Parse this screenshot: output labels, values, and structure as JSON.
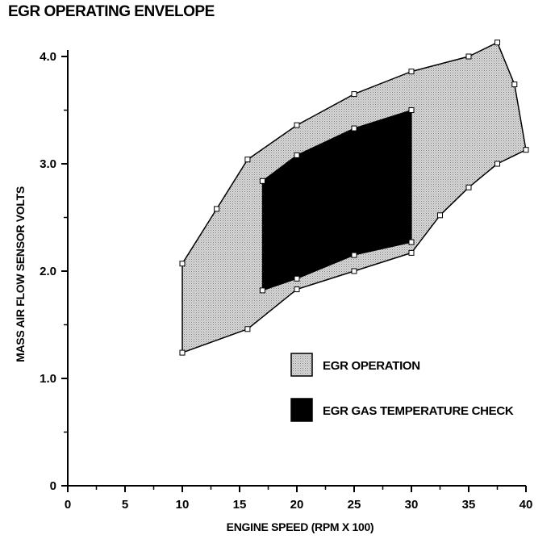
{
  "chart_data": {
    "type": "area",
    "title": "EGR OPERATING ENVELOPE",
    "xlabel": "ENGINE SPEED (RPM X 100)",
    "ylabel": "MASS AIR FLOW SENSOR VOLTS",
    "xlim": [
      0,
      40
    ],
    "ylim": [
      0,
      4.0
    ],
    "x_ticks": [
      "0",
      "5",
      "10",
      "15",
      "20",
      "25",
      "30",
      "35",
      "40"
    ],
    "y_ticks": [
      "0",
      "1.0",
      "2.0",
      "3.0",
      "4.0"
    ],
    "grid": false,
    "legend_position": "bottom-right",
    "series": [
      {
        "name": "EGR OPERATION",
        "fill": "dotted-gray",
        "points": [
          [
            10,
            2.07
          ],
          [
            13,
            2.58
          ],
          [
            15.7,
            3.04
          ],
          [
            20,
            3.36
          ],
          [
            25,
            3.65
          ],
          [
            30,
            3.86
          ],
          [
            35,
            4.0
          ],
          [
            37.5,
            4.13
          ],
          [
            39,
            3.74
          ],
          [
            40,
            3.13
          ],
          [
            37.5,
            3.0
          ],
          [
            35,
            2.78
          ],
          [
            32.5,
            2.52
          ],
          [
            30,
            2.17
          ],
          [
            25,
            2.0
          ],
          [
            20,
            1.83
          ],
          [
            15.7,
            1.46
          ],
          [
            10,
            1.24
          ]
        ]
      },
      {
        "name": "EGR GAS TEMPERATURE CHECK",
        "fill": "#000000",
        "points": [
          [
            17,
            2.84
          ],
          [
            20,
            3.08
          ],
          [
            25,
            3.33
          ],
          [
            30,
            3.5
          ],
          [
            30,
            2.27
          ],
          [
            25,
            2.15
          ],
          [
            20,
            1.93
          ],
          [
            17,
            1.82
          ]
        ]
      }
    ]
  }
}
